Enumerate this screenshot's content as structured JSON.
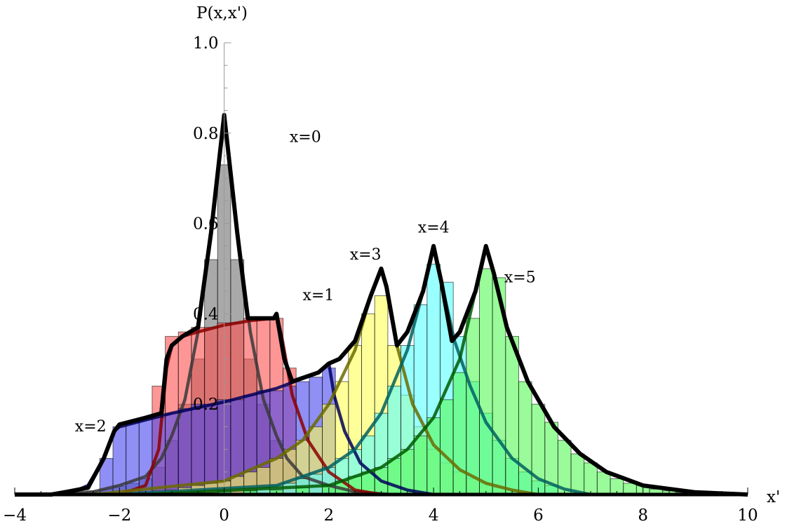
{
  "chart_data": {
    "type": "bar",
    "description_type": "overlapping histograms with fitted curves",
    "xlabel": "x'",
    "ylabel": "P(x,x')",
    "xlim": [
      -4,
      10
    ],
    "ylim": [
      0,
      1.0
    ],
    "x_ticks": [
      -4,
      -2,
      0,
      2,
      4,
      6,
      8,
      10
    ],
    "x_tick_labels": [
      "−4",
      "−2",
      "0",
      "2",
      "4",
      "6",
      "8",
      "10"
    ],
    "y_ticks": [
      0.2,
      0.4,
      0.6,
      0.8,
      1.0
    ],
    "y_tick_labels": [
      "0.2",
      "0.4",
      "0.6",
      "0.8",
      "1.0"
    ],
    "bin_width": 0.25,
    "envelope_color": "#000000",
    "series": [
      {
        "name": "x=0",
        "color": "#707070",
        "curve_color": "#3a3a3a",
        "label_at": [
          1.25,
          0.78
        ],
        "bins": [
          [
            -3.0,
            0.002
          ],
          [
            -2.75,
            0.005
          ],
          [
            -2.5,
            0.008
          ],
          [
            -2.25,
            0.012
          ],
          [
            -2.0,
            0.018
          ],
          [
            -1.75,
            0.025
          ],
          [
            -1.5,
            0.035
          ],
          [
            -1.25,
            0.06
          ],
          [
            -1.0,
            0.12
          ],
          [
            -0.75,
            0.2
          ],
          [
            -0.5,
            0.3
          ],
          [
            -0.25,
            0.52
          ],
          [
            0.0,
            0.73
          ],
          [
            0.25,
            0.52
          ],
          [
            0.5,
            0.3
          ],
          [
            0.75,
            0.2
          ],
          [
            1.0,
            0.12
          ],
          [
            1.25,
            0.07
          ],
          [
            1.5,
            0.04
          ],
          [
            1.75,
            0.03
          ],
          [
            2.0,
            0.02
          ],
          [
            2.25,
            0.012
          ],
          [
            2.5,
            0.007
          ]
        ],
        "curve": [
          [
            -3.2,
            0.0
          ],
          [
            -2.5,
            0.006
          ],
          [
            -2.0,
            0.02
          ],
          [
            -1.5,
            0.04
          ],
          [
            -1.2,
            0.08
          ],
          [
            -1.0,
            0.13
          ],
          [
            -0.75,
            0.21
          ],
          [
            -0.5,
            0.36
          ],
          [
            -0.25,
            0.58
          ],
          [
            0.0,
            0.84
          ],
          [
            0.25,
            0.58
          ],
          [
            0.5,
            0.36
          ],
          [
            0.75,
            0.21
          ],
          [
            1.0,
            0.13
          ],
          [
            1.2,
            0.08
          ],
          [
            1.5,
            0.04
          ],
          [
            2.0,
            0.02
          ],
          [
            2.5,
            0.006
          ],
          [
            3.2,
            0.0
          ]
        ]
      },
      {
        "name": "x=1",
        "color": "#ff5050",
        "curve_color": "#8b0000",
        "label_at": [
          1.5,
          0.43
        ],
        "bins": [
          [
            -1.25,
            0.24
          ],
          [
            -1.0,
            0.35
          ],
          [
            -0.75,
            0.36
          ],
          [
            -0.5,
            0.37
          ],
          [
            -0.25,
            0.37
          ],
          [
            0.0,
            0.38
          ],
          [
            0.25,
            0.38
          ],
          [
            0.5,
            0.39
          ],
          [
            0.75,
            0.39
          ],
          [
            1.0,
            0.39
          ],
          [
            1.25,
            0.28
          ]
        ],
        "curve": [
          [
            -2.0,
            0.0
          ],
          [
            -1.5,
            0.02
          ],
          [
            -1.25,
            0.1
          ],
          [
            -1.1,
            0.28
          ],
          [
            -1.0,
            0.33
          ],
          [
            -0.8,
            0.35
          ],
          [
            -0.5,
            0.36
          ],
          [
            0.0,
            0.375
          ],
          [
            0.5,
            0.385
          ],
          [
            0.95,
            0.39
          ],
          [
            1.0,
            0.4
          ],
          [
            1.1,
            0.35
          ],
          [
            1.3,
            0.22
          ],
          [
            1.6,
            0.12
          ],
          [
            2.0,
            0.05
          ],
          [
            2.5,
            0.01
          ],
          [
            3.0,
            0.0
          ]
        ]
      },
      {
        "name": "x=2",
        "color": "#4444ee",
        "curve_color": "#00005a",
        "label_at": [
          -2.85,
          0.14
        ],
        "bins": [
          [
            -2.25,
            0.08
          ],
          [
            -2.0,
            0.15
          ],
          [
            -1.75,
            0.16
          ],
          [
            -1.5,
            0.17
          ],
          [
            -1.25,
            0.17
          ],
          [
            -1.0,
            0.18
          ],
          [
            -0.75,
            0.19
          ],
          [
            -0.5,
            0.2
          ],
          [
            -0.25,
            0.2
          ],
          [
            0.0,
            0.21
          ],
          [
            0.25,
            0.21
          ],
          [
            0.5,
            0.22
          ],
          [
            0.75,
            0.23
          ],
          [
            1.0,
            0.23
          ],
          [
            1.25,
            0.24
          ],
          [
            1.5,
            0.25
          ],
          [
            1.75,
            0.26
          ],
          [
            2.0,
            0.28
          ]
        ],
        "curve": [
          [
            -3.0,
            0.0
          ],
          [
            -2.6,
            0.02
          ],
          [
            -2.3,
            0.08
          ],
          [
            -2.1,
            0.14
          ],
          [
            -2.0,
            0.15
          ],
          [
            -1.5,
            0.165
          ],
          [
            -1.0,
            0.18
          ],
          [
            0.0,
            0.205
          ],
          [
            1.0,
            0.235
          ],
          [
            1.8,
            0.27
          ],
          [
            2.0,
            0.29
          ],
          [
            2.1,
            0.22
          ],
          [
            2.3,
            0.14
          ],
          [
            2.6,
            0.07
          ],
          [
            3.0,
            0.03
          ],
          [
            3.5,
            0.01
          ],
          [
            4.0,
            0.0
          ]
        ]
      },
      {
        "name": "x=3",
        "color": "#ffff55",
        "curve_color": "#6b6b00",
        "label_at": [
          2.4,
          0.52
        ],
        "bins": [
          [
            -2.0,
            0.002
          ],
          [
            -1.75,
            0.004
          ],
          [
            -1.5,
            0.006
          ],
          [
            -1.25,
            0.008
          ],
          [
            -1.0,
            0.01
          ],
          [
            -0.75,
            0.015
          ],
          [
            -0.5,
            0.02
          ],
          [
            -0.25,
            0.025
          ],
          [
            0.0,
            0.03
          ],
          [
            0.25,
            0.04
          ],
          [
            0.5,
            0.05
          ],
          [
            0.75,
            0.06
          ],
          [
            1.0,
            0.08
          ],
          [
            1.25,
            0.1
          ],
          [
            1.5,
            0.12
          ],
          [
            1.75,
            0.15
          ],
          [
            2.0,
            0.2
          ],
          [
            2.25,
            0.25
          ],
          [
            2.5,
            0.33
          ],
          [
            2.75,
            0.4
          ],
          [
            3.0,
            0.44
          ],
          [
            3.25,
            0.33
          ],
          [
            3.5,
            0.22
          ],
          [
            3.75,
            0.15
          ],
          [
            4.0,
            0.1
          ],
          [
            4.25,
            0.07
          ],
          [
            4.5,
            0.05
          ],
          [
            4.75,
            0.035
          ],
          [
            5.0,
            0.025
          ],
          [
            5.25,
            0.015
          ],
          [
            5.5,
            0.01
          ]
        ],
        "curve": [
          [
            -2.5,
            0.0
          ],
          [
            0.0,
            0.03
          ],
          [
            1.0,
            0.08
          ],
          [
            1.5,
            0.12
          ],
          [
            2.0,
            0.2
          ],
          [
            2.5,
            0.32
          ],
          [
            2.8,
            0.44
          ],
          [
            3.0,
            0.5
          ],
          [
            3.1,
            0.46
          ],
          [
            3.3,
            0.33
          ],
          [
            3.6,
            0.2
          ],
          [
            4.0,
            0.11
          ],
          [
            4.5,
            0.055
          ],
          [
            5.0,
            0.025
          ],
          [
            5.5,
            0.01
          ],
          [
            6.0,
            0.0
          ]
        ]
      },
      {
        "name": "x=4",
        "color": "#55ffff",
        "curve_color": "#006060",
        "label_at": [
          3.7,
          0.58
        ],
        "bins": [
          [
            -1.5,
            0.002
          ],
          [
            -1.0,
            0.004
          ],
          [
            -0.5,
            0.006
          ],
          [
            0.0,
            0.008
          ],
          [
            0.5,
            0.012
          ],
          [
            0.75,
            0.015
          ],
          [
            1.0,
            0.02
          ],
          [
            1.25,
            0.025
          ],
          [
            1.5,
            0.035
          ],
          [
            1.75,
            0.045
          ],
          [
            2.0,
            0.06
          ],
          [
            2.25,
            0.08
          ],
          [
            2.5,
            0.1
          ],
          [
            2.75,
            0.13
          ],
          [
            3.0,
            0.18
          ],
          [
            3.25,
            0.24
          ],
          [
            3.5,
            0.33
          ],
          [
            3.75,
            0.42
          ],
          [
            4.0,
            0.51
          ],
          [
            4.25,
            0.47
          ],
          [
            4.5,
            0.35
          ],
          [
            4.75,
            0.25
          ],
          [
            5.0,
            0.18
          ],
          [
            5.25,
            0.12
          ],
          [
            5.5,
            0.08
          ],
          [
            5.75,
            0.05
          ],
          [
            6.0,
            0.03
          ],
          [
            6.25,
            0.02
          ]
        ],
        "curve": [
          [
            -2.0,
            0.0
          ],
          [
            1.0,
            0.02
          ],
          [
            2.0,
            0.06
          ],
          [
            2.5,
            0.1
          ],
          [
            3.0,
            0.18
          ],
          [
            3.5,
            0.32
          ],
          [
            3.8,
            0.45
          ],
          [
            4.0,
            0.55
          ],
          [
            4.15,
            0.47
          ],
          [
            4.4,
            0.34
          ],
          [
            4.7,
            0.24
          ],
          [
            5.0,
            0.16
          ],
          [
            5.5,
            0.08
          ],
          [
            6.0,
            0.035
          ],
          [
            6.5,
            0.012
          ],
          [
            7.0,
            0.0
          ]
        ]
      },
      {
        "name": "x=5",
        "color": "#55f855",
        "curve_color": "#005a00",
        "label_at": [
          5.35,
          0.47
        ],
        "bins": [
          [
            -1.0,
            0.002
          ],
          [
            -0.5,
            0.004
          ],
          [
            0.0,
            0.006
          ],
          [
            0.5,
            0.008
          ],
          [
            1.0,
            0.01
          ],
          [
            1.5,
            0.015
          ],
          [
            2.0,
            0.02
          ],
          [
            2.25,
            0.03
          ],
          [
            2.5,
            0.04
          ],
          [
            2.75,
            0.05
          ],
          [
            3.0,
            0.06
          ],
          [
            3.25,
            0.08
          ],
          [
            3.5,
            0.1
          ],
          [
            3.75,
            0.13
          ],
          [
            4.0,
            0.17
          ],
          [
            4.25,
            0.21
          ],
          [
            4.5,
            0.27
          ],
          [
            4.75,
            0.39
          ],
          [
            5.0,
            0.5
          ],
          [
            5.25,
            0.48
          ],
          [
            5.5,
            0.35
          ],
          [
            5.75,
            0.25
          ],
          [
            6.0,
            0.2
          ],
          [
            6.25,
            0.16
          ],
          [
            6.5,
            0.12
          ],
          [
            6.75,
            0.09
          ],
          [
            7.0,
            0.07
          ],
          [
            7.25,
            0.05
          ],
          [
            7.5,
            0.035
          ],
          [
            7.75,
            0.025
          ],
          [
            8.0,
            0.02
          ],
          [
            8.25,
            0.012
          ],
          [
            8.5,
            0.008
          ],
          [
            8.75,
            0.005
          ],
          [
            9.0,
            0.003
          ]
        ],
        "curve": [
          [
            -1.5,
            0.0
          ],
          [
            2.0,
            0.02
          ],
          [
            3.0,
            0.06
          ],
          [
            3.5,
            0.1
          ],
          [
            4.0,
            0.17
          ],
          [
            4.5,
            0.3
          ],
          [
            4.8,
            0.45
          ],
          [
            5.0,
            0.55
          ],
          [
            5.15,
            0.49
          ],
          [
            5.4,
            0.37
          ],
          [
            5.8,
            0.25
          ],
          [
            6.3,
            0.15
          ],
          [
            6.8,
            0.09
          ],
          [
            7.3,
            0.05
          ],
          [
            8.0,
            0.02
          ],
          [
            9.0,
            0.005
          ],
          [
            10.0,
            0.0
          ]
        ]
      }
    ],
    "envelope": [
      [
        -4.0,
        0.0
      ],
      [
        -3.3,
        0.0
      ],
      [
        -3.0,
        0.006
      ],
      [
        -2.6,
        0.015
      ],
      [
        -2.3,
        0.08
      ],
      [
        -2.1,
        0.14
      ],
      [
        -2.0,
        0.155
      ],
      [
        -1.5,
        0.17
      ],
      [
        -1.2,
        0.18
      ],
      [
        -1.1,
        0.3
      ],
      [
        -1.0,
        0.33
      ],
      [
        -0.8,
        0.35
      ],
      [
        -0.5,
        0.37
      ],
      [
        -0.25,
        0.58
      ],
      [
        0.0,
        0.84
      ],
      [
        0.25,
        0.58
      ],
      [
        0.45,
        0.39
      ],
      [
        0.95,
        0.39
      ],
      [
        1.0,
        0.4
      ],
      [
        1.15,
        0.3
      ],
      [
        1.3,
        0.25
      ],
      [
        1.8,
        0.27
      ],
      [
        2.0,
        0.29
      ],
      [
        2.2,
        0.3
      ],
      [
        2.5,
        0.34
      ],
      [
        2.8,
        0.44
      ],
      [
        3.0,
        0.5
      ],
      [
        3.1,
        0.46
      ],
      [
        3.3,
        0.33
      ],
      [
        3.5,
        0.36
      ],
      [
        3.8,
        0.45
      ],
      [
        4.0,
        0.55
      ],
      [
        4.15,
        0.47
      ],
      [
        4.35,
        0.34
      ],
      [
        4.5,
        0.36
      ],
      [
        4.8,
        0.45
      ],
      [
        5.0,
        0.55
      ],
      [
        5.15,
        0.49
      ],
      [
        5.4,
        0.37
      ],
      [
        5.8,
        0.25
      ],
      [
        6.3,
        0.15
      ],
      [
        6.8,
        0.09
      ],
      [
        7.3,
        0.05
      ],
      [
        8.0,
        0.02
      ],
      [
        9.0,
        0.005
      ],
      [
        10.0,
        0.0
      ]
    ]
  }
}
